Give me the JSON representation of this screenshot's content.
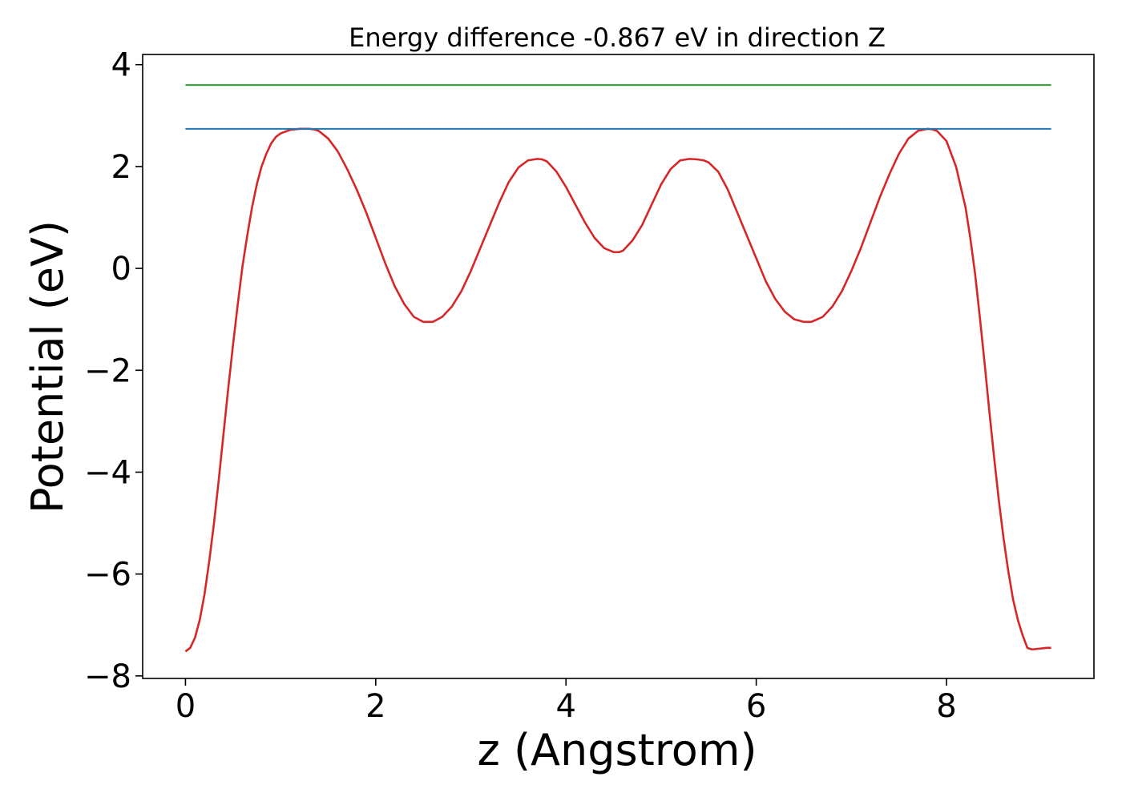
{
  "chart_data": {
    "type": "line",
    "title": "Energy difference -0.867 eV in direction Z",
    "xlabel": "z (Angstrom)",
    "ylabel": "Potential (eV)",
    "xlim": [
      -0.45,
      9.55
    ],
    "ylim": [
      -8.05,
      4.2
    ],
    "x_ticks": [
      0,
      2,
      4,
      6,
      8
    ],
    "y_ticks": [
      -8,
      -6,
      -4,
      -2,
      0,
      2,
      4
    ],
    "x_tick_labels": [
      "0",
      "2",
      "4",
      "6",
      "8"
    ],
    "y_tick_labels": [
      "−8",
      "−6",
      "−4",
      "−2",
      "0",
      "2",
      "4"
    ],
    "grid": false,
    "series": [
      {
        "color": "#d62728",
        "x": [
          0.0,
          0.05,
          0.1,
          0.15,
          0.2,
          0.25,
          0.3,
          0.35,
          0.4,
          0.45,
          0.5,
          0.55,
          0.6,
          0.65,
          0.7,
          0.75,
          0.8,
          0.85,
          0.9,
          0.95,
          1.0,
          1.1,
          1.2,
          1.3,
          1.35,
          1.4,
          1.5,
          1.6,
          1.7,
          1.8,
          1.9,
          2.0,
          2.1,
          2.2,
          2.3,
          2.4,
          2.5,
          2.6,
          2.7,
          2.8,
          2.9,
          3.0,
          3.1,
          3.2,
          3.3,
          3.4,
          3.5,
          3.6,
          3.7,
          3.75,
          3.8,
          3.9,
          4.0,
          4.1,
          4.2,
          4.3,
          4.4,
          4.5,
          4.56,
          4.6,
          4.7,
          4.8,
          4.9,
          5.0,
          5.1,
          5.2,
          5.3,
          5.38,
          5.45,
          5.5,
          5.6,
          5.7,
          5.8,
          5.9,
          6.0,
          6.1,
          6.2,
          6.3,
          6.4,
          6.5,
          6.58,
          6.7,
          6.8,
          6.9,
          7.0,
          7.1,
          7.2,
          7.3,
          7.4,
          7.5,
          7.6,
          7.7,
          7.8,
          7.85,
          7.9,
          8.0,
          8.1,
          8.2,
          8.25,
          8.3,
          8.35,
          8.4,
          8.45,
          8.5,
          8.55,
          8.6,
          8.65,
          8.7,
          8.75,
          8.8,
          8.85,
          8.9,
          8.95,
          9.0,
          9.05,
          9.1
        ],
        "y": [
          -7.52,
          -7.45,
          -7.25,
          -6.9,
          -6.4,
          -5.75,
          -5.0,
          -4.15,
          -3.25,
          -2.35,
          -1.5,
          -0.7,
          0.05,
          0.65,
          1.2,
          1.65,
          2.0,
          2.25,
          2.45,
          2.58,
          2.65,
          2.72,
          2.74,
          2.74,
          2.73,
          2.7,
          2.55,
          2.3,
          1.95,
          1.55,
          1.1,
          0.6,
          0.1,
          -0.35,
          -0.7,
          -0.95,
          -1.05,
          -1.05,
          -0.95,
          -0.75,
          -0.45,
          -0.05,
          0.4,
          0.85,
          1.3,
          1.7,
          1.98,
          2.12,
          2.15,
          2.14,
          2.1,
          1.9,
          1.6,
          1.25,
          0.9,
          0.6,
          0.4,
          0.32,
          0.32,
          0.35,
          0.55,
          0.85,
          1.25,
          1.65,
          1.95,
          2.12,
          2.15,
          2.14,
          2.12,
          2.08,
          1.9,
          1.55,
          1.1,
          0.65,
          0.2,
          -0.25,
          -0.6,
          -0.85,
          -1.0,
          -1.05,
          -1.05,
          -0.95,
          -0.75,
          -0.45,
          -0.05,
          0.4,
          0.9,
          1.4,
          1.85,
          2.25,
          2.55,
          2.7,
          2.74,
          2.73,
          2.7,
          2.5,
          2.0,
          1.2,
          0.6,
          -0.1,
          -0.95,
          -1.85,
          -2.8,
          -3.7,
          -4.55,
          -5.3,
          -5.95,
          -6.5,
          -6.9,
          -7.2,
          -7.45,
          -7.48,
          -7.47,
          -7.46,
          -7.45,
          -7.45
        ]
      },
      {
        "color": "#1f77b4",
        "x": [
          0.0,
          9.1
        ],
        "y": [
          2.74,
          2.74
        ]
      },
      {
        "color": "#2ca02c",
        "x": [
          0.0,
          9.1
        ],
        "y": [
          3.6,
          3.6
        ]
      }
    ]
  }
}
